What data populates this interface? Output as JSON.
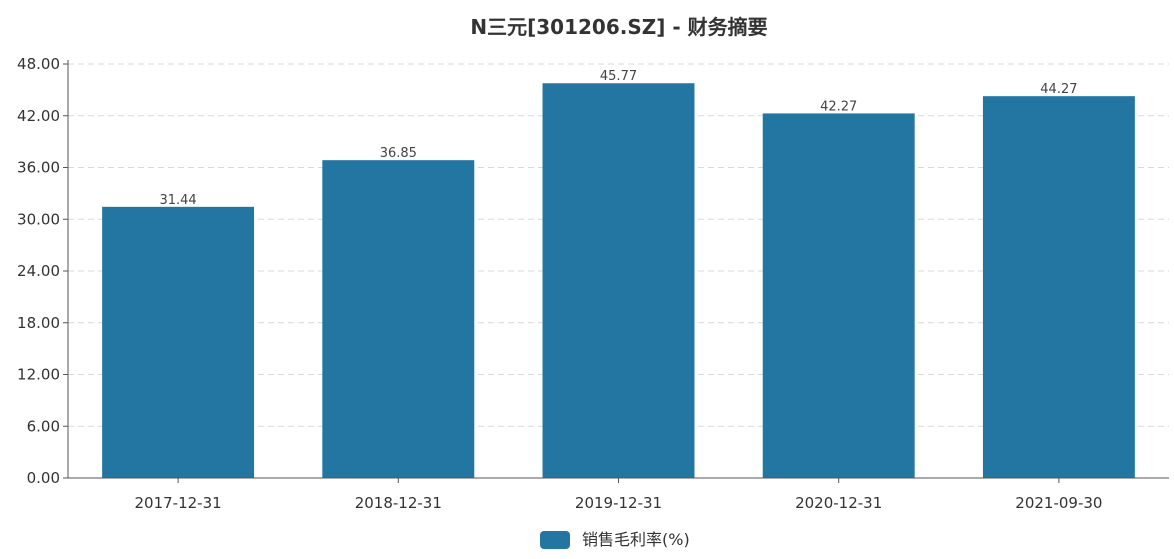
{
  "chart_data": {
    "type": "bar",
    "title": "N三元[301206.SZ] - 财务摘要",
    "categories": [
      "2017-12-31",
      "2018-12-31",
      "2019-12-31",
      "2020-12-31",
      "2021-09-30"
    ],
    "series": [
      {
        "name": "销售毛利率(%)",
        "values": [
          31.44,
          36.85,
          45.77,
          42.27,
          44.27
        ],
        "color": "#2376a2"
      }
    ],
    "data_labels": [
      "31.44",
      "36.85",
      "45.77",
      "42.27",
      "44.27"
    ],
    "y_ticks": [
      "0.00",
      "6.00",
      "12.00",
      "18.00",
      "24.00",
      "30.00",
      "36.00",
      "42.00",
      "48.00"
    ],
    "ylim": [
      0,
      48
    ],
    "grid": true,
    "legend_position": "bottom-center"
  }
}
